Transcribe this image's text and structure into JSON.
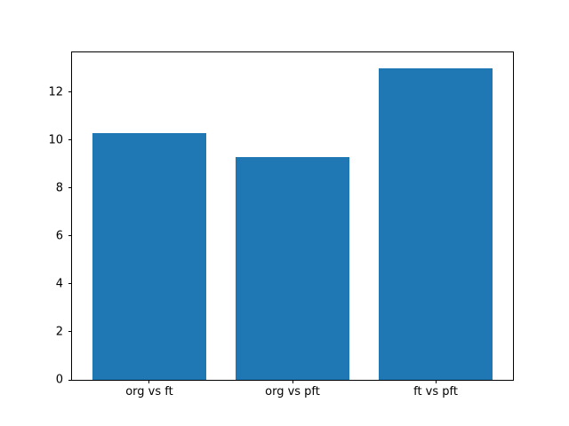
{
  "chart_data": {
    "type": "bar",
    "title": "",
    "xlabel": "",
    "ylabel": "",
    "categories": [
      "org vs ft",
      "org vs pft",
      "ft vs pft"
    ],
    "values": [
      10.3,
      9.3,
      13.0
    ],
    "ylim": [
      0,
      13.65
    ],
    "yticks": [
      0,
      2,
      4,
      6,
      8,
      10,
      12
    ],
    "xlim": [
      -0.54,
      2.54
    ],
    "bar_width": 0.8,
    "bar_color": "#1f77b4",
    "background_color": "#ffffff",
    "spine_color": "#000000",
    "grid": false,
    "legend": false
  }
}
